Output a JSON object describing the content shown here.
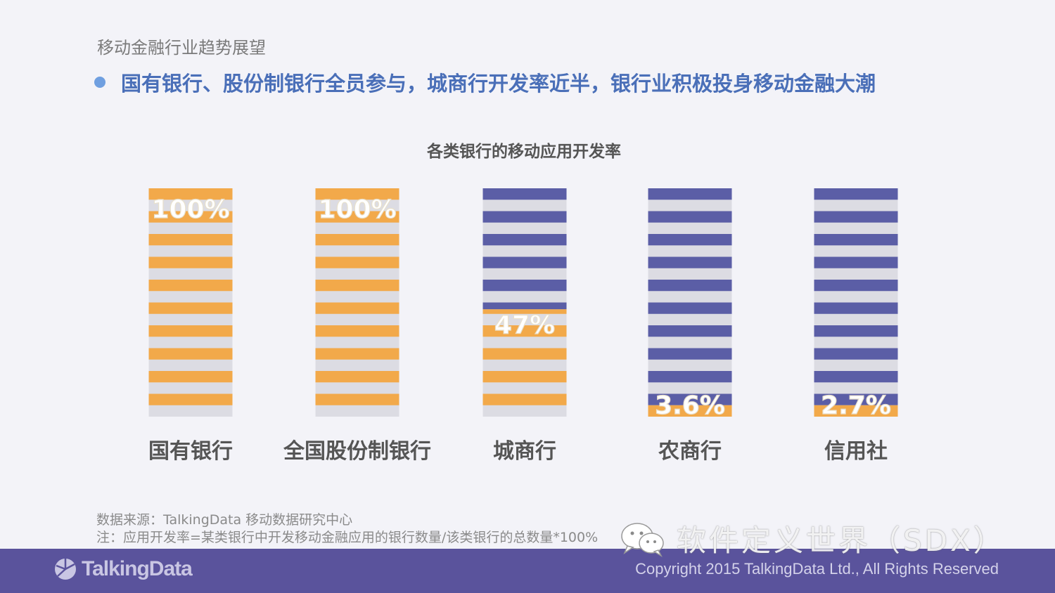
{
  "section_title": "移动金融行业趋势展望",
  "headline": "国有银行、股份制银行全员参与，城商行开发率近半，银行业积极投身移动金融大潮",
  "chart_data": {
    "type": "bar",
    "title": "各类银行的移动应用开发率",
    "categories": [
      "国有银行",
      "全国股份制银行",
      "城商行",
      "农商行",
      "信用社"
    ],
    "values": [
      100,
      100,
      47,
      3.6,
      2.7
    ],
    "value_labels": [
      "100%",
      "100%",
      "47%",
      "3.6%",
      "2.7%"
    ],
    "ylim": [
      0,
      100
    ],
    "xlabel": "",
    "ylabel": "",
    "grid": false,
    "colors": {
      "filled": "#f2a94a",
      "unfilled": "#5b5ea6",
      "gap": "#dcdce3"
    }
  },
  "notes": {
    "source": "数据来源：TalkingData 移动数据研究中心",
    "definition": "注：应用开发率=某类银行中开发移动金融应用的银行数量/该类银行的总数量*100%"
  },
  "footer": {
    "logo_text": "TalkingData",
    "copyright": "Copyright 2015 TalkingData Ltd., All Rights Reserved"
  },
  "watermark": {
    "text": "软件定义世界（SDX）",
    "icon": "wechat-icon"
  }
}
